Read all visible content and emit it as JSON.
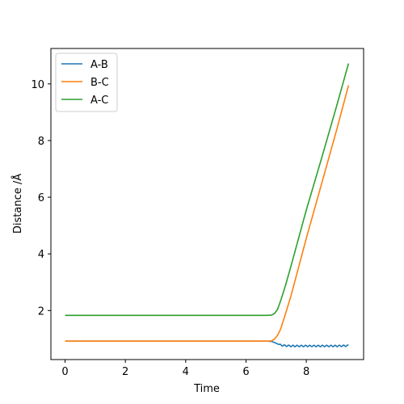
{
  "chart_data": {
    "type": "line",
    "title": "",
    "xlabel": "Time",
    "ylabel": "Distance /Å",
    "xlim": [
      -0.47,
      9.9
    ],
    "ylim": [
      0.27,
      11.25
    ],
    "xticks": [
      0,
      2,
      4,
      6,
      8
    ],
    "yticks": [
      2,
      4,
      6,
      8,
      10
    ],
    "grid": false,
    "legend_position": "top-left",
    "series": [
      {
        "name": "A-B",
        "color": "#1f77b4",
        "x": [
          0,
          1,
          2,
          3,
          4,
          5,
          6,
          6.7,
          6.85,
          6.95,
          7.05,
          7.15,
          7.3,
          7.5,
          8,
          8.5,
          9,
          9.4
        ],
        "y": [
          0.92,
          0.92,
          0.92,
          0.92,
          0.92,
          0.92,
          0.92,
          0.92,
          0.91,
          0.87,
          0.82,
          0.78,
          0.76,
          0.75,
          0.75,
          0.75,
          0.75,
          0.76
        ],
        "oscillation": {
          "start": 7.1,
          "amplitude": 0.025,
          "period": 0.14
        }
      },
      {
        "name": "B-C",
        "color": "#ff7f0e",
        "x": [
          0,
          1,
          2,
          3,
          4,
          5,
          6,
          6.7,
          6.85,
          6.95,
          7.05,
          7.15,
          7.3,
          7.5,
          8,
          8.5,
          9,
          9.4
        ],
        "y": [
          0.92,
          0.92,
          0.92,
          0.92,
          0.92,
          0.92,
          0.92,
          0.92,
          0.93,
          1.0,
          1.13,
          1.35,
          1.85,
          2.55,
          4.55,
          6.45,
          8.35,
          9.95
        ]
      },
      {
        "name": "A-C",
        "color": "#2ca02c",
        "x": [
          0,
          1,
          2,
          3,
          4,
          5,
          6,
          6.7,
          6.85,
          6.95,
          7.05,
          7.15,
          7.3,
          7.5,
          8,
          8.5,
          9,
          9.4
        ],
        "y": [
          1.83,
          1.83,
          1.83,
          1.83,
          1.83,
          1.83,
          1.83,
          1.83,
          1.84,
          1.9,
          2.05,
          2.35,
          2.85,
          3.6,
          5.55,
          7.35,
          9.2,
          10.72
        ]
      }
    ]
  }
}
